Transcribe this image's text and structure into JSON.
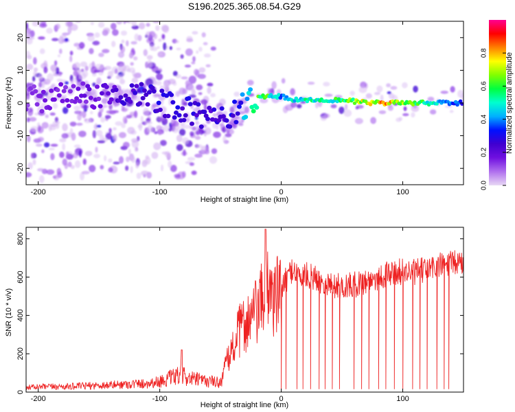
{
  "figure": {
    "title": "S196.2025.365.08.54.G29"
  },
  "chart_data": [
    {
      "type": "heatmap",
      "xlabel": "Height of straight line (km)",
      "ylabel": "Frequency (Hz)",
      "xlim": [
        -210,
        150
      ],
      "ylim": [
        -25,
        25
      ],
      "xticks": [
        -200,
        -100,
        0,
        100
      ],
      "yticks": [
        -20,
        -10,
        0,
        10,
        20
      ],
      "colorbar": {
        "label": "Normalized spectral amplitude",
        "range": [
          0,
          1
        ],
        "ticks": [
          "0.0",
          "0.2",
          "0.4",
          "0.6",
          "0.8"
        ],
        "tick_values": [
          0.0,
          0.2,
          0.4,
          0.6,
          0.8
        ],
        "colors": [
          "#e8d8f4",
          "#b070ee",
          "#7010e0",
          "#4000d0",
          "#0010ff",
          "#00b0ff",
          "#00ffd0",
          "#00ff40",
          "#80ff00",
          "#ffff00",
          "#ff8000",
          "#ff0000",
          "#ff0090"
        ]
      },
      "ridge": {
        "description": "dominant frequency ridge",
        "height_km": [
          -210,
          -180,
          -150,
          -130,
          -110,
          -90,
          -70,
          -55,
          -45,
          -35,
          -25,
          -15,
          -5,
          0,
          10,
          30,
          50,
          70,
          90,
          110,
          130,
          150
        ],
        "frequency_hz": [
          1,
          2,
          2,
          3,
          2,
          -1,
          -3,
          -5,
          -6,
          -2,
          1,
          2,
          2,
          2,
          1,
          1,
          1,
          0,
          0,
          0,
          0,
          0
        ],
        "amplitude": [
          0.15,
          0.18,
          0.2,
          0.28,
          0.3,
          0.32,
          0.3,
          0.28,
          0.3,
          0.35,
          0.6,
          0.75,
          0.55,
          0.45,
          0.55,
          0.6,
          0.65,
          0.85,
          0.9,
          0.7,
          0.5,
          0.4
        ]
      }
    },
    {
      "type": "line",
      "xlabel": "Height of straight line (km)",
      "ylabel": "SNR (10 * v/v)",
      "xlim": [
        -210,
        150
      ],
      "ylim": [
        0,
        860
      ],
      "xticks": [
        -200,
        -100,
        0,
        100
      ],
      "yticks": [
        0,
        200,
        400,
        600,
        800
      ],
      "series": [
        {
          "name": "SNR",
          "color": "#ee2222",
          "x": [
            -210,
            -190,
            -170,
            -150,
            -130,
            -110,
            -100,
            -90,
            -82,
            -75,
            -65,
            -50,
            -45,
            -40,
            -35,
            -30,
            -25,
            -20,
            -15,
            -13,
            -10,
            -5,
            0,
            5,
            10,
            15,
            20,
            30,
            40,
            50,
            60,
            70,
            80,
            90,
            100,
            110,
            120,
            130,
            140,
            150
          ],
          "y": [
            25,
            28,
            30,
            35,
            40,
            45,
            55,
            75,
            90,
            70,
            60,
            50,
            150,
            230,
            310,
            360,
            380,
            420,
            480,
            620,
            560,
            480,
            530,
            600,
            650,
            600,
            610,
            590,
            560,
            550,
            560,
            580,
            600,
            620,
            630,
            625,
            640,
            660,
            670,
            680
          ]
        }
      ],
      "peaks": [
        {
          "x": -13,
          "y": 850
        },
        {
          "x": -82,
          "y": 220
        }
      ],
      "dropouts_x": [
        0,
        4,
        13,
        18,
        24,
        31,
        36,
        42,
        48,
        60,
        66,
        72,
        80,
        86,
        93,
        100,
        108,
        114,
        120,
        128,
        134,
        138
      ]
    }
  ]
}
